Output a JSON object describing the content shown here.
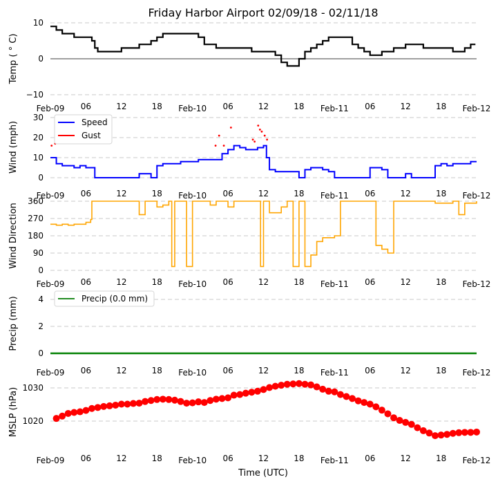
{
  "chart_data": [
    {
      "type": "line",
      "panel": "temperature",
      "title": "Friday Harbor Airport 02/09/18 - 02/11/18",
      "ylabel": "Temp ($^\\circ$C)",
      "ylabel_display": "Temp ( ° C)",
      "ylim": [
        -10,
        10
      ],
      "yticks": [
        "−10",
        "0",
        "10"
      ],
      "ytick_values": [
        -10,
        0,
        10
      ],
      "zero_line": true,
      "grid": true,
      "color": "#000000",
      "x_hours": [
        0,
        1,
        2,
        3,
        4,
        5,
        6,
        7,
        7.5,
        8,
        9,
        10,
        11,
        12,
        13,
        14,
        15,
        16,
        17,
        18,
        19,
        20,
        21,
        22,
        23,
        24,
        25,
        26,
        27,
        28,
        29,
        30,
        31,
        32,
        33,
        34,
        35,
        36,
        37,
        38,
        39,
        40,
        41,
        42,
        43,
        44,
        45,
        46,
        47,
        48,
        49,
        50,
        51,
        52,
        53,
        54,
        55,
        56,
        57,
        58,
        59,
        60,
        61,
        62,
        63,
        64,
        65,
        66,
        67,
        68,
        69,
        70,
        71
      ],
      "values": [
        9,
        8,
        7,
        7,
        6,
        6,
        6,
        5,
        3,
        2,
        2,
        2,
        2,
        3,
        3,
        3,
        4,
        4,
        5,
        6,
        7,
        7,
        7,
        7,
        7,
        7,
        6,
        4,
        4,
        3,
        3,
        3,
        3,
        3,
        3,
        2,
        2,
        2,
        2,
        1,
        -1,
        -2,
        -2,
        0,
        2,
        3,
        4,
        5,
        6,
        6,
        6,
        6,
        4,
        3,
        2,
        1,
        1,
        2,
        2,
        3,
        3,
        4,
        4,
        4,
        3,
        3,
        3,
        3,
        3,
        2,
        2,
        3,
        4
      ],
      "series_note": "stepped 1-min observations, approximate"
    },
    {
      "type": "line",
      "panel": "wind",
      "ylabel": "Wind (mph)",
      "ylim": [
        0,
        30
      ],
      "yticks": [
        "0",
        "10",
        "20",
        "30"
      ],
      "ytick_values": [
        0,
        10,
        20,
        30
      ],
      "grid": true,
      "legend": [
        "Speed",
        "Gust"
      ],
      "legend_position": "upper-left",
      "series": [
        {
          "name": "Speed",
          "color": "#0000ff",
          "x_hours": [
            0,
            1,
            2,
            3,
            4,
            5,
            6,
            7,
            7.5,
            8,
            9,
            10,
            11,
            12,
            13,
            14,
            15,
            16,
            17,
            18,
            19,
            20,
            21,
            22,
            23,
            24,
            25,
            26,
            27,
            28,
            29,
            30,
            31,
            32,
            33,
            34,
            35,
            36,
            36.5,
            37,
            38,
            39,
            40,
            41,
            42,
            43,
            44,
            45,
            46,
            47,
            48,
            49,
            50,
            51,
            52,
            53,
            54,
            55,
            56,
            57,
            58,
            59,
            60,
            61,
            62,
            63,
            64,
            65,
            66,
            67,
            68,
            69,
            70,
            71,
            72
          ],
          "values": [
            10,
            7,
            6,
            6,
            5,
            6,
            5,
            5,
            0,
            0,
            0,
            0,
            0,
            0,
            0,
            0,
            2,
            2,
            0,
            6,
            7,
            7,
            7,
            8,
            8,
            8,
            9,
            9,
            9,
            9,
            12,
            14,
            16,
            15,
            14,
            14,
            15,
            16,
            10,
            4,
            3,
            3,
            3,
            3,
            0,
            4,
            5,
            5,
            4,
            3,
            0,
            0,
            0,
            0,
            0,
            0,
            5,
            5,
            4,
            0,
            0,
            0,
            2,
            0,
            0,
            0,
            0,
            6,
            7,
            6,
            7,
            7,
            7,
            8,
            8,
            8
          ]
        },
        {
          "name": "Gust",
          "color": "#ff0000",
          "points": [
            [
              0.2,
              16
            ],
            [
              0.8,
              17
            ],
            [
              27.9,
              16
            ],
            [
              28.5,
              21
            ],
            [
              29.3,
              16
            ],
            [
              30.5,
              25
            ],
            [
              34.2,
              19
            ],
            [
              34.5,
              18
            ],
            [
              35.1,
              26
            ],
            [
              35.4,
              24
            ],
            [
              35.7,
              23
            ],
            [
              36.2,
              21
            ],
            [
              36.6,
              19
            ]
          ]
        }
      ]
    },
    {
      "type": "line",
      "panel": "wind_direction",
      "ylabel": "Wind Direction",
      "ylim": [
        0,
        360
      ],
      "yticks": [
        "0",
        "90",
        "180",
        "270",
        "360"
      ],
      "ytick_values": [
        0,
        90,
        180,
        270,
        360
      ],
      "grid": true,
      "color": "#ffa500",
      "x_hours": [
        0,
        1,
        2,
        3,
        4,
        5,
        6,
        6.8,
        7,
        8,
        9,
        10,
        11,
        12,
        13,
        14,
        15,
        16,
        17,
        18,
        19,
        20,
        20.5,
        21,
        22,
        23,
        24,
        25,
        26,
        27,
        28,
        29,
        30,
        31,
        32,
        33,
        34,
        35,
        35.5,
        36,
        37,
        38,
        39,
        40,
        41,
        42,
        43,
        44,
        45,
        46,
        47,
        48,
        49,
        50,
        51,
        52,
        53,
        54,
        55,
        56,
        57,
        58,
        59,
        60,
        61,
        62,
        63,
        64,
        65,
        66,
        67,
        68,
        69,
        70,
        71,
        72
      ],
      "values": [
        240,
        235,
        240,
        235,
        240,
        240,
        250,
        265,
        360,
        360,
        360,
        360,
        360,
        360,
        360,
        360,
        290,
        360,
        360,
        330,
        340,
        360,
        20,
        360,
        360,
        20,
        360,
        360,
        360,
        340,
        360,
        360,
        330,
        360,
        360,
        360,
        360,
        360,
        20,
        360,
        300,
        300,
        330,
        360,
        20,
        360,
        20,
        80,
        150,
        170,
        170,
        180,
        360,
        360,
        360,
        360,
        360,
        360,
        130,
        110,
        90,
        360,
        360,
        360,
        360,
        360,
        360,
        360,
        350,
        350,
        350,
        360,
        290,
        350,
        350,
        360,
        350
      ]
    },
    {
      "type": "line",
      "panel": "precip",
      "ylabel": "Precip (mm)",
      "ylim": [
        0,
        5
      ],
      "yticks": [
        "0",
        "2",
        "4"
      ],
      "ytick_values": [
        0,
        2,
        4
      ],
      "grid": true,
      "color": "#008000",
      "legend": [
        "Precip (0.0 mm)"
      ],
      "legend_position": "upper-left",
      "x_hours": [
        0,
        72
      ],
      "values": [
        0,
        0
      ]
    },
    {
      "type": "scatter",
      "panel": "mslp",
      "ylabel": "MSLP (hPa)",
      "xlabel": "Time (UTC)",
      "ylim": [
        1013,
        1032
      ],
      "yticks": [
        "1020",
        "1030"
      ],
      "ytick_values": [
        1020,
        1030
      ],
      "grid": true,
      "color": "#ff0000",
      "x_hours": [
        1,
        2,
        3,
        4,
        5,
        6,
        7,
        8,
        9,
        10,
        11,
        12,
        13,
        14,
        15,
        16,
        17,
        18,
        19,
        20,
        21,
        22,
        23,
        24,
        25,
        26,
        27,
        28,
        29,
        30,
        31,
        32,
        33,
        34,
        35,
        36,
        37,
        38,
        39,
        40,
        41,
        42,
        43,
        44,
        45,
        46,
        47,
        48,
        49,
        50,
        51,
        52,
        53,
        54,
        55,
        56,
        57,
        58,
        59,
        60,
        61,
        62,
        63,
        64,
        65,
        66,
        67,
        68,
        69,
        70,
        71,
        72
      ],
      "values": [
        1020.8,
        1021.5,
        1022.3,
        1022.6,
        1022.8,
        1023.2,
        1023.8,
        1024.1,
        1024.4,
        1024.6,
        1024.8,
        1025.1,
        1025.1,
        1025.3,
        1025.4,
        1025.9,
        1026.2,
        1026.5,
        1026.6,
        1026.5,
        1026.3,
        1025.9,
        1025.4,
        1025.5,
        1025.8,
        1025.6,
        1026.2,
        1026.6,
        1026.8,
        1027.0,
        1027.8,
        1028.0,
        1028.4,
        1028.7,
        1029.0,
        1029.5,
        1030.1,
        1030.5,
        1030.8,
        1031.1,
        1031.2,
        1031.3,
        1031.1,
        1030.9,
        1030.3,
        1029.6,
        1029.0,
        1028.8,
        1028.0,
        1027.4,
        1026.8,
        1026.1,
        1025.6,
        1025.1,
        1024.3,
        1023.3,
        1022.2,
        1021.0,
        1020.2,
        1019.6,
        1019.0,
        1018.0,
        1017.1,
        1016.4,
        1015.6,
        1015.8,
        1016.0,
        1016.3,
        1016.5,
        1016.6,
        1016.6,
        1016.7
      ]
    }
  ],
  "x_axis": {
    "start": "Feb-09 00Z",
    "end": "Feb-12 00Z",
    "range_hours": [
      0,
      72
    ],
    "tick_hours": [
      0,
      6,
      12,
      18,
      24,
      30,
      36,
      42,
      48,
      54,
      60,
      66,
      72
    ],
    "tick_labels": [
      "Feb-09",
      "06",
      "12",
      "18",
      "Feb-10",
      "06",
      "12",
      "18",
      "Feb-11",
      "06",
      "12",
      "18",
      "Feb-12"
    ],
    "label": "Time (UTC)"
  },
  "labels": {
    "title": "Friday Harbor Airport 02/09/18 - 02/11/18",
    "temp_ylabel": "Temp ( ° C)",
    "wind_ylabel": "Wind (mph)",
    "dir_ylabel": "Wind Direction",
    "precip_ylabel": "Precip (mm)",
    "mslp_ylabel": "MSLP (hPa)",
    "xlabel": "Time (UTC)",
    "legend_speed": "Speed",
    "legend_gust": "Gust",
    "legend_precip": "Precip (0.0 mm)"
  }
}
